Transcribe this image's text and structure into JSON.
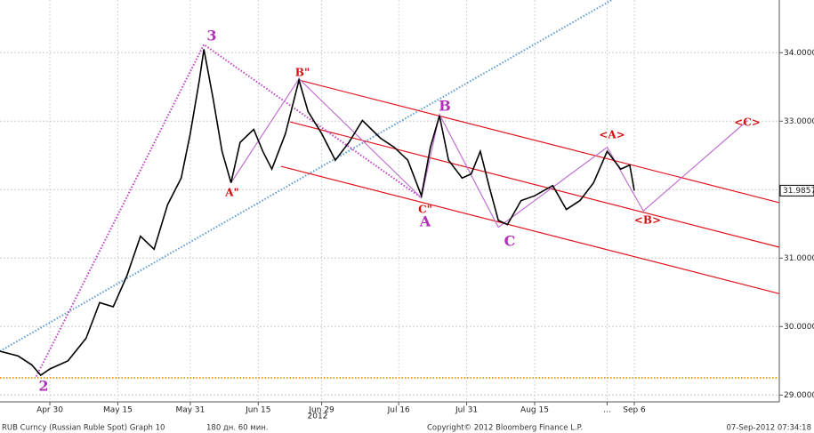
{
  "chart_data": {
    "type": "line",
    "series": [
      {
        "color": "#000000",
        "x": [
          "2012-04-19",
          "2012-04-23",
          "2012-04-26",
          "2012-04-28",
          "2012-04-30",
          "2012-05-04",
          "2012-05-08",
          "2012-05-11",
          "2012-05-14",
          "2012-05-17",
          "2012-05-20",
          "2012-05-23",
          "2012-05-26",
          "2012-05-29",
          "2012-05-31",
          "2012-06-02",
          "2012-06-03",
          "2012-06-05",
          "2012-06-07",
          "2012-06-09",
          "2012-06-11",
          "2012-06-14",
          "2012-06-16",
          "2012-06-18",
          "2012-06-21",
          "2012-06-24",
          "2012-06-26",
          "2012-06-29",
          "2012-07-02",
          "2012-07-05",
          "2012-07-08",
          "2012-07-12",
          "2012-07-15",
          "2012-07-18",
          "2012-07-21",
          "2012-07-23",
          "2012-07-25",
          "2012-07-27",
          "2012-07-30",
          "2012-08-01",
          "2012-08-03",
          "2012-08-05",
          "2012-08-07",
          "2012-08-09",
          "2012-08-12",
          "2012-08-15",
          "2012-08-19",
          "2012-08-22",
          "2012-08-25",
          "2012-08-28",
          "2012-08-31",
          "2012-09-03",
          "2012-09-05",
          "2012-09-06"
        ],
        "values": [
          29.64,
          29.57,
          29.44,
          29.29,
          29.38,
          29.5,
          29.83,
          30.35,
          30.29,
          30.74,
          31.32,
          31.13,
          31.78,
          32.17,
          32.82,
          33.6,
          34.05,
          33.34,
          32.56,
          32.1,
          32.69,
          32.88,
          32.56,
          32.3,
          32.82,
          33.6,
          33.14,
          32.82,
          32.43,
          32.69,
          33.01,
          32.75,
          32.62,
          32.43,
          31.91,
          32.62,
          33.08,
          32.43,
          32.17,
          32.23,
          32.56,
          32.04,
          31.55,
          31.49,
          31.84,
          31.91,
          32.06,
          31.71,
          31.84,
          32.1,
          32.56,
          32.3,
          32.36,
          31.9857
        ]
      }
    ],
    "overlays": [
      {
        "color": "#5b9bd5",
        "style": "dotted",
        "x": [
          "2012-04-19",
          "2012-09-01"
        ],
        "y": [
          29.64,
          34.77
        ]
      },
      {
        "color": "#e8a020",
        "style": "dotted",
        "x": [
          "2012-04-19",
          "2012-10-08"
        ],
        "y": [
          29.25,
          29.25
        ]
      },
      {
        "color": "#e0141e",
        "style": "solid",
        "x": [
          "2012-06-24",
          "2012-10-08"
        ],
        "y": [
          33.6,
          31.81
        ]
      },
      {
        "color": "#e0141e",
        "style": "solid",
        "x": [
          "2012-06-22",
          "2012-10-08"
        ],
        "y": [
          32.99,
          31.16
        ]
      },
      {
        "color": "#e0141e",
        "style": "solid",
        "x": [
          "2012-06-20",
          "2012-10-08"
        ],
        "y": [
          32.34,
          30.48
        ]
      },
      {
        "color": "#c040c8",
        "style": "dotted",
        "x": [
          "2012-04-27",
          "2012-06-03",
          "2012-07-21"
        ],
        "y": [
          29.27,
          34.12,
          31.88
        ]
      },
      {
        "color": "#c070d0",
        "style": "solid",
        "x": [
          "2012-06-09",
          "2012-06-24",
          "2012-07-21",
          "2012-07-25",
          "2012-08-07",
          "2012-08-31",
          "2012-09-08",
          "2012-10-01"
        ],
        "y": [
          32.1,
          33.62,
          31.88,
          33.1,
          31.45,
          32.62,
          31.69,
          33.01
        ]
      }
    ],
    "annotations": [
      {
        "text": "2",
        "color": "#b030b8"
      },
      {
        "text": "3",
        "color": "#b030b8"
      },
      {
        "text": "A\"",
        "color": "#d01010"
      },
      {
        "text": "B\"",
        "color": "#d01010"
      },
      {
        "text": "C\"",
        "color": "#d01010"
      },
      {
        "text": "B",
        "color": "#b030b8"
      },
      {
        "text": "A",
        "color": "#b030b8"
      },
      {
        "text": "C",
        "color": "#b030b8"
      },
      {
        "text": "<A>",
        "color": "#d01010"
      },
      {
        "text": "<B>",
        "color": "#d01010"
      },
      {
        "text": "<C>",
        "color": "#d01010"
      }
    ],
    "xlim": [
      "2012-04-19",
      "2012-10-08"
    ],
    "xticks": [
      {
        "value": "2012-04-30",
        "label": "Apr 30"
      },
      {
        "value": "2012-05-15",
        "label": "May 15"
      },
      {
        "value": "2012-05-31",
        "label": "May 31"
      },
      {
        "value": "2012-06-15",
        "label": "Jun 15"
      },
      {
        "value": "2012-06-29",
        "label": "Jun 29"
      },
      {
        "value": "2012-07-16",
        "label": "Jul 16"
      },
      {
        "value": "2012-07-31",
        "label": "Jul 31"
      },
      {
        "value": "2012-08-15",
        "label": "Aug 15"
      },
      {
        "value": "2012-08-31",
        "label": "..."
      },
      {
        "value": "2012-09-06",
        "label": "Sep 6"
      }
    ],
    "year_label": "2012",
    "ylim": [
      28.9,
      34.77
    ],
    "yticks": [
      {
        "value": 29,
        "label": "29.0000"
      },
      {
        "value": 30,
        "label": "30.0000"
      },
      {
        "value": 31,
        "label": "31.0000"
      },
      {
        "value": 32,
        "label": "32.0000"
      },
      {
        "value": 33,
        "label": "33.0000"
      },
      {
        "value": 34,
        "label": "34.0000"
      }
    ],
    "grid": true
  },
  "footer": {
    "security": "RUB Curncy (Russian Ruble Spot) Graph 10",
    "period": "180 дн. 60 мин.",
    "copyright": "Copyright© 2012 Bloomberg Finance L.P.",
    "timestamp": "07-Sep-2012 07:34:18"
  }
}
